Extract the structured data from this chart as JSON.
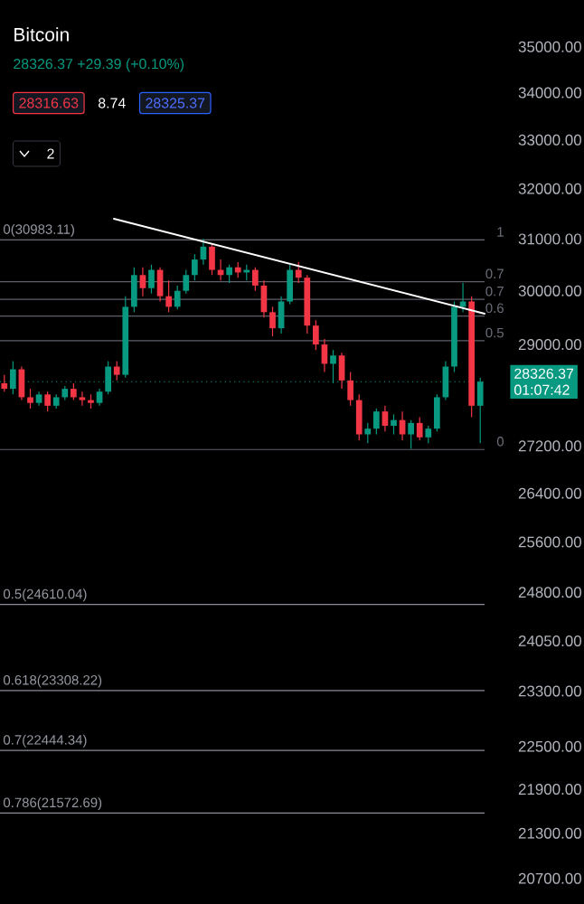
{
  "chart_data": {
    "type": "candlestick",
    "title": "Bitcoin",
    "subtitle": "28326.37 +29.39 (+0.10%)",
    "categories": [
      null,
      null,
      null,
      null,
      null,
      null,
      null,
      null,
      null,
      null,
      null,
      null,
      null,
      null,
      null,
      null,
      null,
      null,
      null,
      null,
      null,
      null,
      null,
      null,
      null,
      null,
      null,
      null,
      null,
      null,
      null,
      null,
      null,
      null,
      null,
      null,
      null,
      null,
      null,
      null,
      null,
      null,
      null,
      null,
      null,
      null,
      null,
      null,
      null,
      null,
      null,
      null,
      null,
      null,
      null,
      null
    ],
    "ohlc": [
      [
        28300,
        28450,
        28150,
        28200
      ],
      [
        28200,
        28700,
        28100,
        28550
      ],
      [
        28550,
        28600,
        28000,
        28050
      ],
      [
        28050,
        28200,
        27850,
        27950
      ],
      [
        27950,
        28150,
        27900,
        28100
      ],
      [
        28100,
        28150,
        27800,
        27900
      ],
      [
        27900,
        28100,
        27850,
        28050
      ],
      [
        28050,
        28250,
        28000,
        28200
      ],
      [
        28200,
        28300,
        28000,
        28050
      ],
      [
        28050,
        28150,
        27900,
        28000
      ],
      [
        28000,
        28100,
        27850,
        27950
      ],
      [
        27950,
        28200,
        27900,
        28150
      ],
      [
        28150,
        28700,
        28100,
        28600
      ],
      [
        28600,
        28700,
        28350,
        28450
      ],
      [
        28450,
        29900,
        28400,
        29700
      ],
      [
        29700,
        30450,
        29600,
        30300
      ],
      [
        30300,
        30450,
        29900,
        30050
      ],
      [
        30050,
        30500,
        29950,
        30400
      ],
      [
        30400,
        30450,
        29800,
        29900
      ],
      [
        29900,
        30200,
        29600,
        29700
      ],
      [
        29700,
        30100,
        29650,
        30000
      ],
      [
        30000,
        30400,
        29950,
        30300
      ],
      [
        30300,
        30700,
        30200,
        30600
      ],
      [
        30600,
        31000,
        30500,
        30850
      ],
      [
        30850,
        30900,
        30300,
        30400
      ],
      [
        30400,
        30600,
        30200,
        30300
      ],
      [
        30300,
        30500,
        30150,
        30450
      ],
      [
        30450,
        30550,
        30250,
        30350
      ],
      [
        30350,
        30500,
        30200,
        30400
      ],
      [
        30400,
        30450,
        30000,
        30100
      ],
      [
        30100,
        30200,
        29500,
        29600
      ],
      [
        29600,
        29700,
        29150,
        29300
      ],
      [
        29300,
        29900,
        29200,
        29800
      ],
      [
        29800,
        30500,
        29750,
        30400
      ],
      [
        30400,
        30550,
        30150,
        30250
      ],
      [
        30250,
        30300,
        29200,
        29350
      ],
      [
        29350,
        29450,
        28900,
        29000
      ],
      [
        29000,
        29100,
        28500,
        28650
      ],
      [
        28650,
        28900,
        28300,
        28800
      ],
      [
        28800,
        28850,
        28200,
        28350
      ],
      [
        28350,
        28500,
        27900,
        28000
      ],
      [
        28000,
        28100,
        27300,
        27400
      ],
      [
        27400,
        27600,
        27250,
        27500
      ],
      [
        27500,
        27850,
        27400,
        27800
      ],
      [
        27800,
        27900,
        27450,
        27550
      ],
      [
        27550,
        27750,
        27400,
        27650
      ],
      [
        27650,
        27800,
        27300,
        27400
      ],
      [
        27400,
        27650,
        27150,
        27600
      ],
      [
        27600,
        27700,
        27300,
        27350
      ],
      [
        27350,
        27550,
        27250,
        27500
      ],
      [
        27500,
        28100,
        27450,
        28050
      ],
      [
        28050,
        28700,
        28000,
        28600
      ],
      [
        28600,
        29800,
        28500,
        29700
      ],
      [
        29700,
        30150,
        29600,
        29800
      ],
      [
        29800,
        29900,
        27700,
        27900
      ],
      [
        27900,
        28400,
        27250,
        28326.37
      ]
    ],
    "colors": [
      "#f23645",
      "#089981",
      "#f23645",
      "#f23645",
      "#089981",
      "#f23645",
      "#089981",
      "#089981",
      "#f23645",
      "#f23645",
      "#f23645",
      "#089981",
      "#089981",
      "#f23645",
      "#089981",
      "#089981",
      "#f23645",
      "#089981",
      "#f23645",
      "#f23645",
      "#089981",
      "#089981",
      "#089981",
      "#089981",
      "#f23645",
      "#f23645",
      "#089981",
      "#f23645",
      "#089981",
      "#f23645",
      "#f23645",
      "#f23645",
      "#089981",
      "#089981",
      "#f23645",
      "#f23645",
      "#f23645",
      "#f23645",
      "#089981",
      "#f23645",
      "#f23645",
      "#f23645",
      "#089981",
      "#089981",
      "#f23645",
      "#089981",
      "#f23645",
      "#089981",
      "#f23645",
      "#089981",
      "#089981",
      "#089981",
      "#089981",
      "#089981",
      "#f23645",
      "#089981"
    ],
    "log": "y",
    "ylim": [
      20700,
      35000
    ],
    "yticks": [
      {
        "value": 35000,
        "label": "35000.00"
      },
      {
        "value": 34000,
        "label": "34000.00"
      },
      {
        "value": 33000,
        "label": "33000.00"
      },
      {
        "value": 32000,
        "label": "32000.00"
      },
      {
        "value": 31000,
        "label": "31000.00"
      },
      {
        "value": 30000,
        "label": "30000.00"
      },
      {
        "value": 29000,
        "label": "29000.00"
      },
      {
        "value": 27200,
        "label": "27200.00"
      },
      {
        "value": 26400,
        "label": "26400.00"
      },
      {
        "value": 25600,
        "label": "25600.00"
      },
      {
        "value": 24800,
        "label": "24800.00"
      },
      {
        "value": 24050,
        "label": "24050.00"
      },
      {
        "value": 23300,
        "label": "23300.00"
      },
      {
        "value": 22500,
        "label": "22500.00"
      },
      {
        "value": 21900,
        "label": "21900.00"
      },
      {
        "value": 21300,
        "label": "21300.00"
      },
      {
        "value": 20700,
        "label": "20700.00"
      }
    ],
    "tick_labels": "y",
    "ref_lines": [
      {
        "axis": "y",
        "value": 30983.11,
        "label": "0(30983.11)",
        "color": "#8a8d96"
      },
      {
        "axis": "y",
        "value": 24610.04,
        "label": "0.5(24610.04)",
        "color": "#8a8d96"
      },
      {
        "axis": "y",
        "value": 23308.22,
        "label": "0.618(23308.22)",
        "color": "#8a8d96"
      },
      {
        "axis": "y",
        "value": 22444.34,
        "label": "0.7(22444.34)",
        "color": "#8a8d96"
      },
      {
        "axis": "y",
        "value": 21572.69,
        "label": "0.786(21572.69)",
        "color": "#8a8d96"
      },
      {
        "axis": "y",
        "value": 30174,
        "color": "#5d606b"
      },
      {
        "axis": "y",
        "value": 29842,
        "color": "#5d606b"
      },
      {
        "axis": "y",
        "value": 29525,
        "color": "#5d606b"
      },
      {
        "axis": "y",
        "value": 29070,
        "color": "#5d606b"
      },
      {
        "axis": "y",
        "value": 27140,
        "color": "#5d606b"
      },
      {
        "axis": "y",
        "value": 28326.37,
        "label": "28326.37",
        "color": "#089981",
        "line_style": "dotted"
      }
    ],
    "annotations": [
      "28316.63",
      "8.74",
      "28325.37",
      "2",
      "01:07:42",
      "1",
      "0.7",
      "0.7",
      "0.6",
      "0.5",
      "0"
    ]
  }
}
